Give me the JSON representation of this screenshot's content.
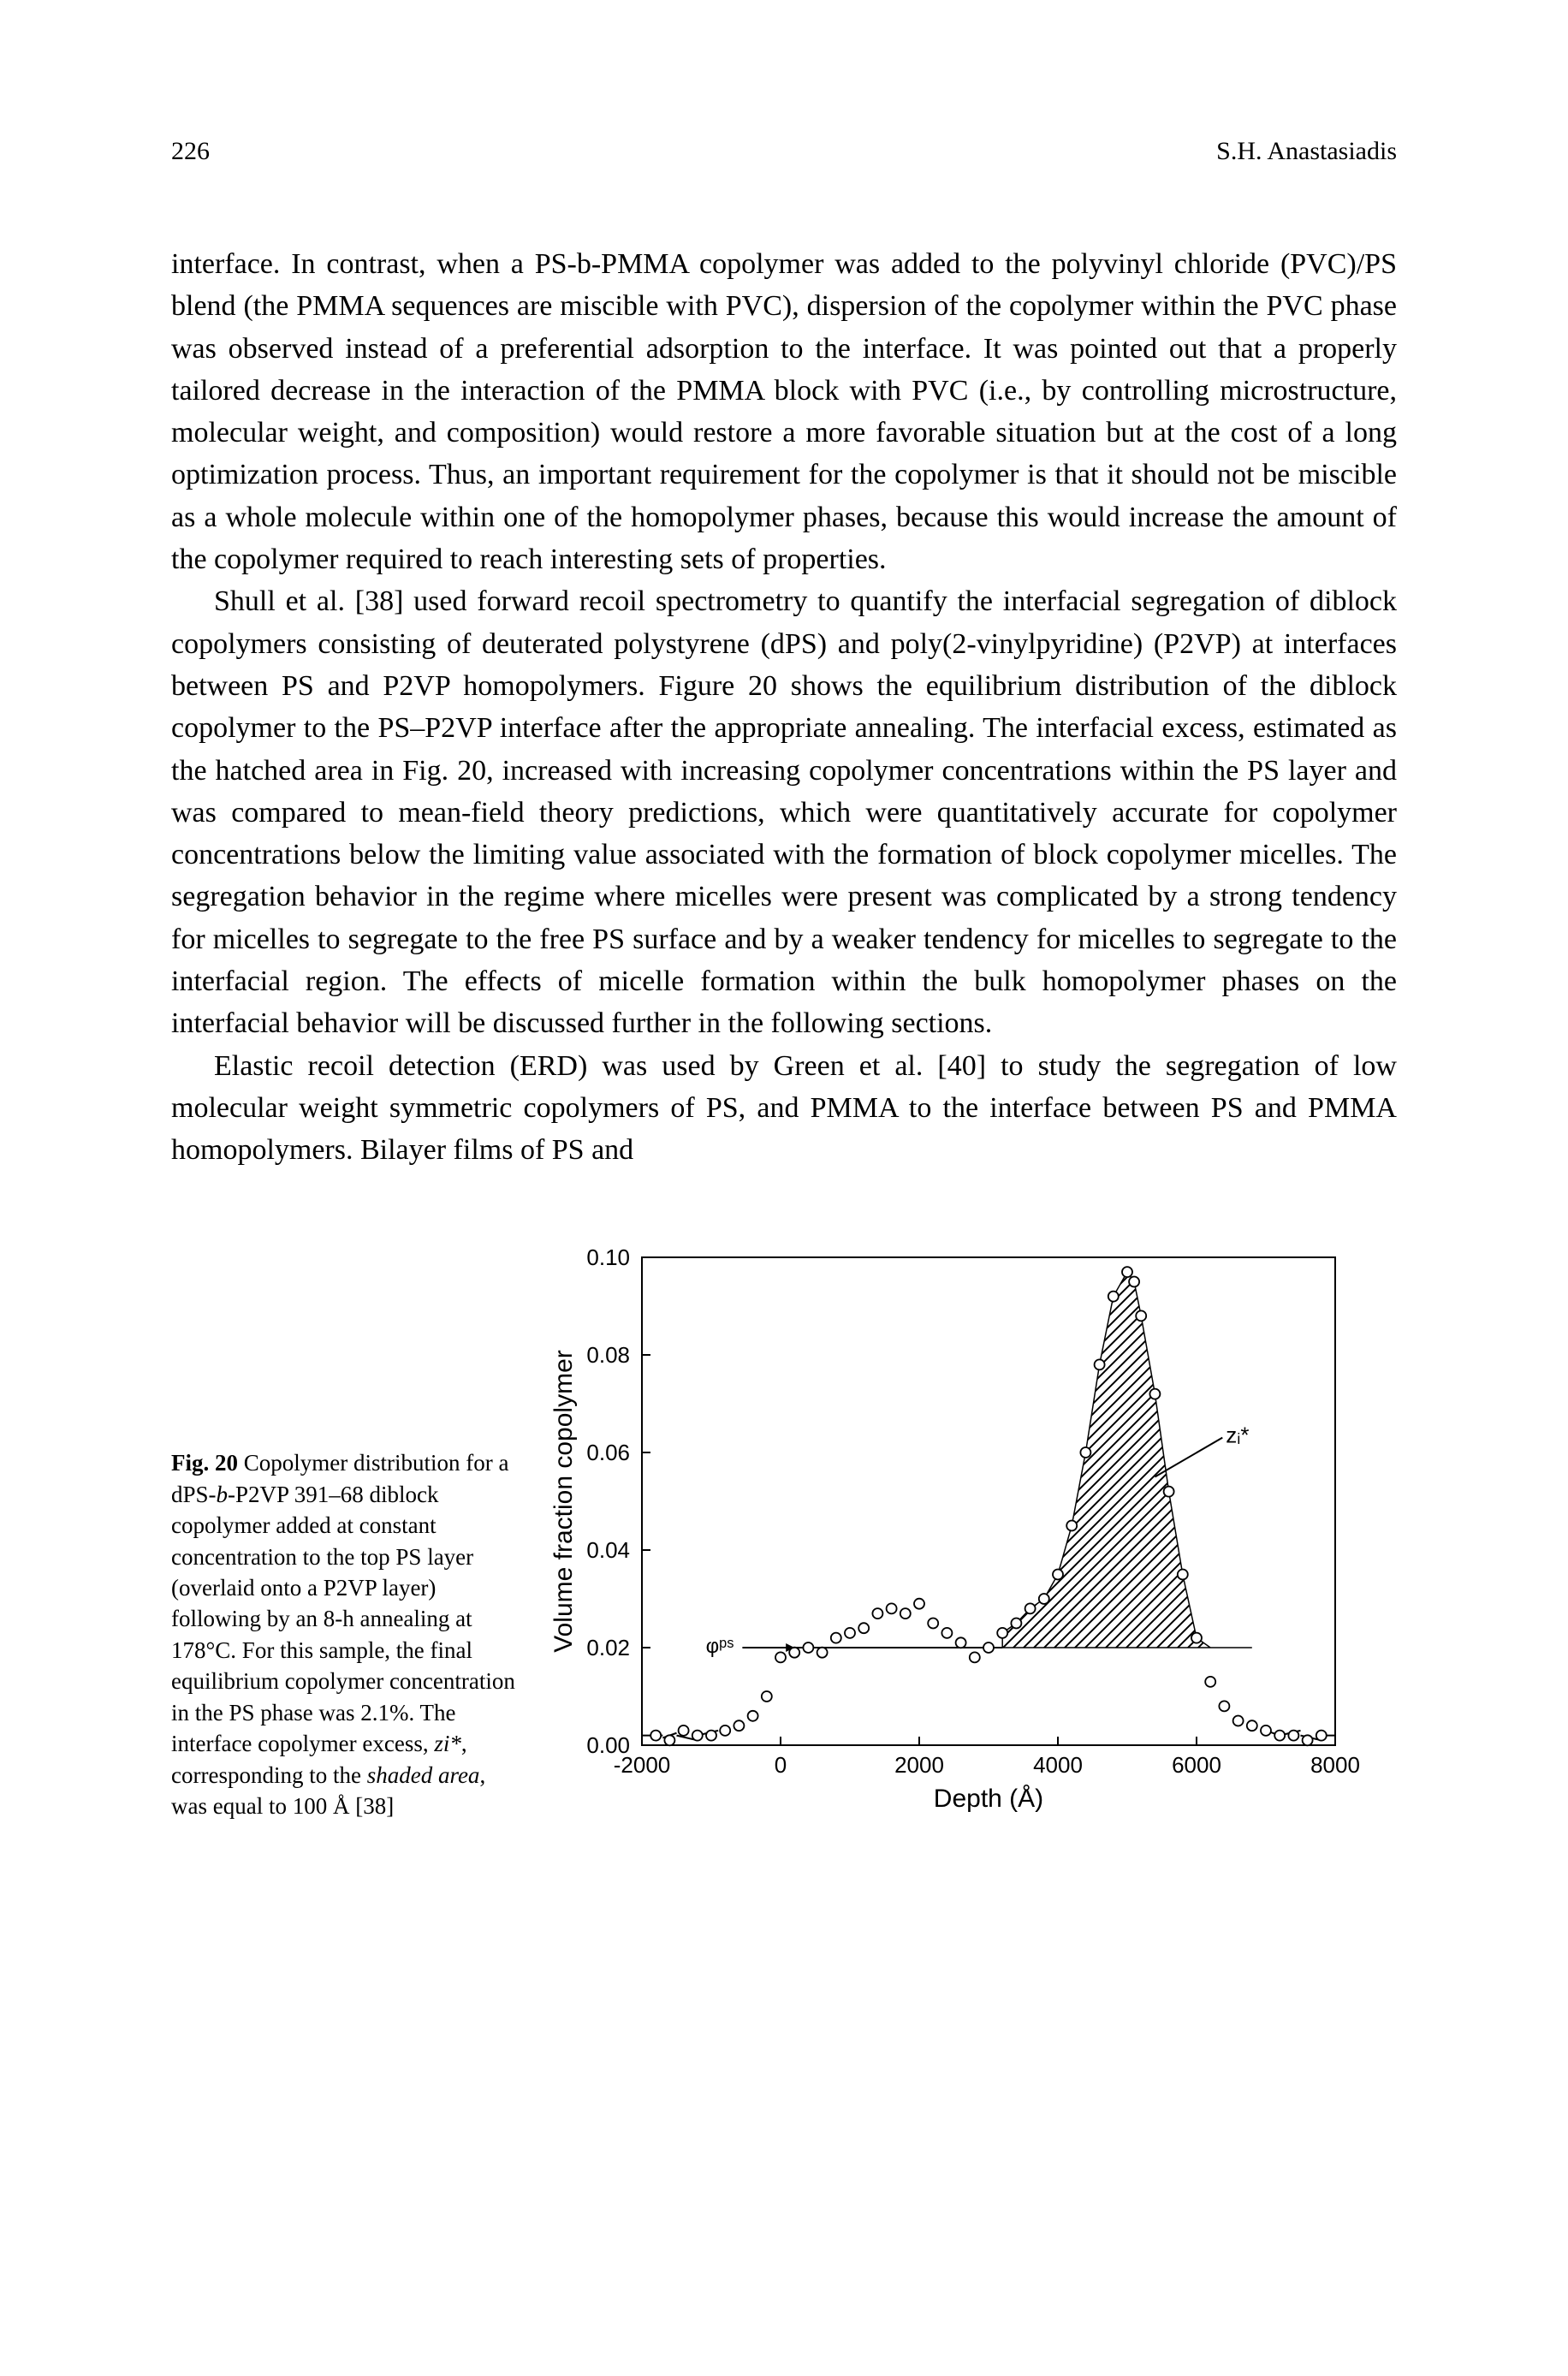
{
  "header": {
    "page_number": "226",
    "running_head": "S.H. Anastasiadis"
  },
  "paragraphs": {
    "p1": "interface. In contrast, when a PS-b-PMMA copolymer was added to the polyvinyl chloride (PVC)/PS blend (the PMMA sequences are miscible with PVC), dispersion of the copolymer within the PVC phase was observed instead of a preferential adsorption to the interface. It was pointed out that a properly tailored decrease in the interaction of the PMMA block with PVC (i.e., by controlling microstructure, molecular weight, and composition) would restore a more favorable situation but at the cost of a long optimization process. Thus, an important requirement for the copolymer is that it should not be miscible as a whole molecule within one of the homopolymer phases, because this would increase the amount of the copolymer required to reach interesting sets of properties.",
    "p2": "Shull et al. [38] used forward recoil spectrometry to quantify the interfacial segregation of diblock copolymers consisting of deuterated polystyrene (dPS) and poly(2-vinylpyridine) (P2VP) at interfaces between PS and P2VP homopolymers. Figure 20 shows the equilibrium distribution of the diblock copolymer to the PS–P2VP interface after the appropriate annealing. The interfacial excess, estimated as the hatched area in Fig. 20, increased with increasing copolymer concentrations within the PS layer and was compared to mean-field theory predictions, which were quantitatively accurate for copolymer concentrations below the limiting value associated with the formation of block copolymer micelles. The segregation behavior in the regime where micelles were present was complicated by a strong tendency for micelles to segregate to the free PS surface and by a weaker tendency for micelles to segregate to the interfacial region. The effects of micelle formation within the bulk homopolymer phases on the interfacial behavior will be discussed further in the following sections.",
    "p3": "Elastic recoil detection (ERD) was used by Green et al. [40] to study the segregation of low molecular weight symmetric copolymers of PS, and PMMA to the interface between PS and PMMA homopolymers. Bilayer films of PS and"
  },
  "figure": {
    "caption_bold": "Fig. 20",
    "caption_rest_1": " Copolymer distribution for a dPS-",
    "caption_ital_1": "b",
    "caption_rest_2": "-P2VP 391–68 diblock copolymer added at constant concentration to the top PS layer (overlaid onto a P2VP layer) following by an 8-h annealing at 178°C. For this sample, the final equilibrium copolymer concentration in the PS phase was 2.1%. The interface copolymer excess, ",
    "caption_ital_2": "zi*",
    "caption_rest_3": ", corresponding to the ",
    "caption_ital_3": "shaded area",
    "caption_rest_4": ", was equal to 100 Å [38]",
    "chart": {
      "type": "line",
      "xlabel": "Depth (Å)",
      "ylabel": "Volume fraction copolymer",
      "xlim": [
        -2000,
        8000
      ],
      "ylim": [
        0.0,
        0.1
      ],
      "xticks": [
        -2000,
        0,
        2000,
        4000,
        6000,
        8000
      ],
      "yticks": [
        0.0,
        0.02,
        0.04,
        0.06,
        0.08,
        0.1
      ],
      "axis_fontsize": 26,
      "label_fontsize": 30,
      "background_color": "#ffffff",
      "axis_color": "#000000",
      "marker_style": "circle-open",
      "marker_color": "#000000",
      "marker_fill": "#ffffff",
      "marker_size": 6,
      "line_width": 2,
      "hatch_pattern": "diagonal",
      "hatch_color": "#000000",
      "annotations": {
        "phi_ps": "φᵖˢ",
        "zi_star": "zᵢ*"
      },
      "baseline_segments": [
        {
          "x": [
            -2000,
            -1700
          ],
          "y": [
            0.002,
            0.002
          ]
        },
        {
          "x": [
            -1700,
            -1500
          ],
          "y": [
            0.0015,
            0.0025
          ]
        },
        {
          "x": [
            -1500,
            -1200
          ],
          "y": [
            0.002,
            0.001
          ]
        },
        {
          "x": [
            -1200,
            -900
          ],
          "y": [
            0.002,
            0.003
          ]
        },
        {
          "x": [
            7000,
            7200
          ],
          "y": [
            0.003,
            0.002
          ]
        },
        {
          "x": [
            7200,
            7500
          ],
          "y": [
            0.002,
            0.003
          ]
        },
        {
          "x": [
            7500,
            7800
          ],
          "y": [
            0.002,
            0.001
          ]
        },
        {
          "x": [
            7800,
            8000
          ],
          "y": [
            0.002,
            0.002
          ]
        }
      ],
      "data_points": [
        {
          "x": -1800,
          "y": 0.002
        },
        {
          "x": -1600,
          "y": 0.001
        },
        {
          "x": -1400,
          "y": 0.003
        },
        {
          "x": -1200,
          "y": 0.002
        },
        {
          "x": -1000,
          "y": 0.002
        },
        {
          "x": -800,
          "y": 0.003
        },
        {
          "x": -600,
          "y": 0.004
        },
        {
          "x": -400,
          "y": 0.006
        },
        {
          "x": -200,
          "y": 0.01
        },
        {
          "x": 0,
          "y": 0.018
        },
        {
          "x": 200,
          "y": 0.019
        },
        {
          "x": 400,
          "y": 0.02
        },
        {
          "x": 600,
          "y": 0.019
        },
        {
          "x": 800,
          "y": 0.022
        },
        {
          "x": 1000,
          "y": 0.023
        },
        {
          "x": 1200,
          "y": 0.024
        },
        {
          "x": 1400,
          "y": 0.027
        },
        {
          "x": 1600,
          "y": 0.028
        },
        {
          "x": 1800,
          "y": 0.027
        },
        {
          "x": 2000,
          "y": 0.029
        },
        {
          "x": 2200,
          "y": 0.025
        },
        {
          "x": 2400,
          "y": 0.023
        },
        {
          "x": 2600,
          "y": 0.021
        },
        {
          "x": 2800,
          "y": 0.018
        },
        {
          "x": 3000,
          "y": 0.02
        },
        {
          "x": 3200,
          "y": 0.023
        },
        {
          "x": 3400,
          "y": 0.025
        },
        {
          "x": 3600,
          "y": 0.028
        },
        {
          "x": 3800,
          "y": 0.03
        },
        {
          "x": 4000,
          "y": 0.035
        },
        {
          "x": 4200,
          "y": 0.045
        },
        {
          "x": 4400,
          "y": 0.06
        },
        {
          "x": 4600,
          "y": 0.078
        },
        {
          "x": 4800,
          "y": 0.092
        },
        {
          "x": 5000,
          "y": 0.097
        },
        {
          "x": 5100,
          "y": 0.095
        },
        {
          "x": 5200,
          "y": 0.088
        },
        {
          "x": 5400,
          "y": 0.072
        },
        {
          "x": 5600,
          "y": 0.052
        },
        {
          "x": 5800,
          "y": 0.035
        },
        {
          "x": 6000,
          "y": 0.022
        },
        {
          "x": 6200,
          "y": 0.013
        },
        {
          "x": 6400,
          "y": 0.008
        },
        {
          "x": 6600,
          "y": 0.005
        },
        {
          "x": 6800,
          "y": 0.004
        },
        {
          "x": 7000,
          "y": 0.003
        },
        {
          "x": 7200,
          "y": 0.002
        },
        {
          "x": 7400,
          "y": 0.002
        },
        {
          "x": 7600,
          "y": 0.001
        },
        {
          "x": 7800,
          "y": 0.002
        }
      ],
      "baseline_value": 0.02,
      "peak_fill_x_range": [
        3200,
        6800
      ]
    }
  }
}
